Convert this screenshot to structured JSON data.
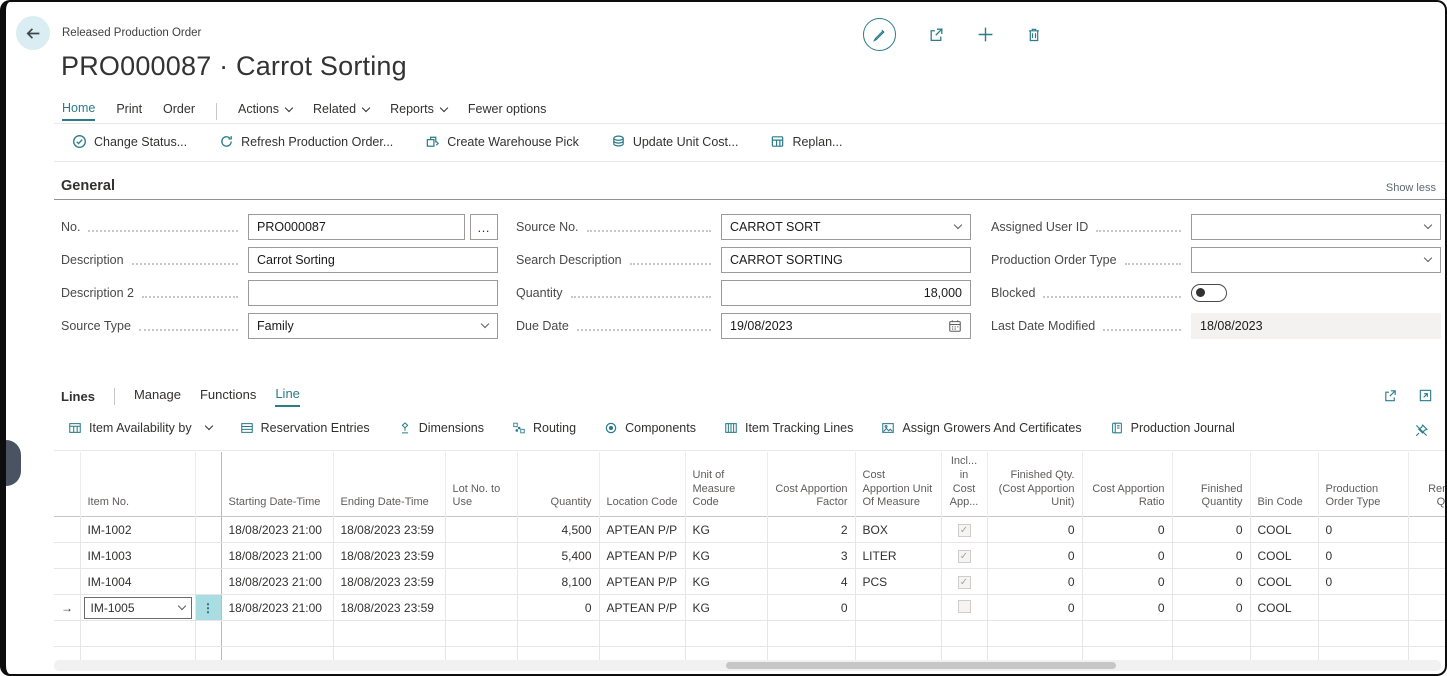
{
  "header": {
    "breadcrumb": "Released Production Order",
    "title": "PRO000087 · Carrot Sorting"
  },
  "menubar": {
    "tabs": [
      {
        "label": "Home",
        "active": true
      },
      {
        "label": "Print",
        "active": false
      },
      {
        "label": "Order",
        "active": false
      }
    ],
    "menus": [
      {
        "label": "Actions"
      },
      {
        "label": "Related"
      },
      {
        "label": "Reports"
      }
    ],
    "fewer_options": "Fewer options"
  },
  "command_bar": [
    {
      "label": "Change Status...",
      "icon": "change-status-icon"
    },
    {
      "label": "Refresh Production Order...",
      "icon": "refresh-icon"
    },
    {
      "label": "Create Warehouse Pick",
      "icon": "warehouse-pick-icon"
    },
    {
      "label": "Update Unit Cost...",
      "icon": "unit-cost-icon"
    },
    {
      "label": "Replan...",
      "icon": "replan-icon"
    }
  ],
  "general": {
    "heading": "General",
    "show_less": "Show less",
    "no": {
      "label": "No.",
      "value": "PRO000087"
    },
    "description": {
      "label": "Description",
      "value": "Carrot Sorting"
    },
    "description2": {
      "label": "Description 2",
      "value": ""
    },
    "source_type": {
      "label": "Source Type",
      "value": "Family"
    },
    "source_no": {
      "label": "Source No.",
      "value": "CARROT SORT"
    },
    "search_description": {
      "label": "Search Description",
      "value": "CARROT SORTING"
    },
    "quantity": {
      "label": "Quantity",
      "value": "18,000"
    },
    "due_date": {
      "label": "Due Date",
      "value": "19/08/2023"
    },
    "assigned_user_id": {
      "label": "Assigned User ID",
      "value": ""
    },
    "production_order_type": {
      "label": "Production Order Type",
      "value": ""
    },
    "blocked": {
      "label": "Blocked",
      "state": "off"
    },
    "last_date_modified": {
      "label": "Last Date Modified",
      "value": "18/08/2023"
    }
  },
  "lines": {
    "heading": "Lines",
    "tabs": [
      {
        "label": "Manage",
        "active": false
      },
      {
        "label": "Functions",
        "active": false
      },
      {
        "label": "Line",
        "active": true
      }
    ],
    "toolbar": [
      {
        "label": "Item Availability by",
        "icon": "item-availability-icon",
        "dropdown": true
      },
      {
        "label": "Reservation Entries",
        "icon": "reservation-entries-icon"
      },
      {
        "label": "Dimensions",
        "icon": "dimensions-icon"
      },
      {
        "label": "Routing",
        "icon": "routing-icon"
      },
      {
        "label": "Components",
        "icon": "components-icon"
      },
      {
        "label": "Item Tracking Lines",
        "icon": "item-tracking-icon"
      },
      {
        "label": "Assign Growers And Certificates",
        "icon": "assign-growers-icon"
      },
      {
        "label": "Production Journal",
        "icon": "production-journal-icon"
      }
    ],
    "table": {
      "columns": [
        {
          "key": "row-marker",
          "label": "",
          "align": "center",
          "type": "marker"
        },
        {
          "key": "item-no",
          "label": "Item No.",
          "align": "left",
          "type": "item"
        },
        {
          "key": "row-menu",
          "label": "",
          "align": "center",
          "type": "menu"
        },
        {
          "key": "starting-date-time",
          "label": "Starting Date-Time",
          "align": "left"
        },
        {
          "key": "ending-date-time",
          "label": "Ending Date-Time",
          "align": "left"
        },
        {
          "key": "lot-no-to-use",
          "label": "Lot No. to\nUse",
          "align": "left"
        },
        {
          "key": "quantity",
          "label": "Quantity",
          "align": "right"
        },
        {
          "key": "location-code",
          "label": "Location Code",
          "align": "left"
        },
        {
          "key": "unit-of-measure-code",
          "label": "Unit of\nMeasure Code",
          "align": "left"
        },
        {
          "key": "cost-apportion-factor",
          "label": "Cost Apportion\nFactor",
          "align": "right"
        },
        {
          "key": "cost-apportion-unit-of-measure",
          "label": "Cost\nApportion Unit\nOf Measure",
          "align": "left"
        },
        {
          "key": "incl-in-cost-app",
          "label": "Incl...\nin\nCost\nApp...",
          "align": "center",
          "type": "checkbox"
        },
        {
          "key": "finished-qty-cost-apportion-unit",
          "label": "Finished Qty.\n(Cost Apportion\nUnit)",
          "align": "right"
        },
        {
          "key": "cost-apportion-ratio",
          "label": "Cost Apportion\nRatio",
          "align": "right"
        },
        {
          "key": "finished-quantity",
          "label": "Finished\nQuantity",
          "align": "right"
        },
        {
          "key": "bin-code",
          "label": "Bin Code",
          "align": "left"
        },
        {
          "key": "production-order-type",
          "label": "Production\nOrder Type",
          "align": "left"
        },
        {
          "key": "remaining-quantity",
          "label": "Rem...\nQu...",
          "align": "right"
        }
      ],
      "rows": [
        {
          "selected": false,
          "cells": [
            "",
            "IM-1002",
            "",
            "18/08/2023 21:00",
            "18/08/2023 23:59",
            "",
            "4,500",
            "APTEAN P/P",
            "KG",
            "2",
            "BOX",
            true,
            "0",
            "0",
            "0",
            "COOL",
            "0",
            ""
          ]
        },
        {
          "selected": false,
          "cells": [
            "",
            "IM-1003",
            "",
            "18/08/2023 21:00",
            "18/08/2023 23:59",
            "",
            "5,400",
            "APTEAN P/P",
            "KG",
            "3",
            "LITER",
            true,
            "0",
            "0",
            "0",
            "COOL",
            "0",
            ""
          ]
        },
        {
          "selected": false,
          "cells": [
            "",
            "IM-1004",
            "",
            "18/08/2023 21:00",
            "18/08/2023 23:59",
            "",
            "8,100",
            "APTEAN P/P",
            "KG",
            "4",
            "PCS",
            true,
            "0",
            "0",
            "0",
            "COOL",
            "0",
            ""
          ]
        },
        {
          "selected": true,
          "cells": [
            "→",
            "IM-1005",
            "⋮",
            "18/08/2023 21:00",
            "18/08/2023 23:59",
            "",
            "0",
            "APTEAN P/P",
            "KG",
            "0",
            "",
            false,
            "0",
            "0",
            "0",
            "COOL",
            "",
            ""
          ]
        },
        {
          "selected": false,
          "cells": [
            "",
            "",
            "",
            "",
            "",
            "",
            "",
            "",
            "",
            "",
            "",
            null,
            "",
            "",
            "",
            "",
            "",
            ""
          ]
        },
        {
          "selected": false,
          "cells": [
            "",
            "",
            "",
            "",
            "",
            "",
            "",
            "",
            "",
            "",
            "",
            null,
            "",
            "",
            "",
            "",
            "",
            ""
          ]
        },
        {
          "selected": false,
          "cells": [
            "",
            "",
            "",
            "",
            "",
            "",
            "",
            "",
            "",
            "",
            "",
            null,
            "",
            "",
            "",
            "",
            "",
            ""
          ]
        }
      ]
    }
  },
  "icons": {
    "assist_edit": "…",
    "row_menu": "⋮",
    "selected_marker": "→",
    "checkbox_check": "✓"
  },
  "colors": {
    "accent_teal": "#2b7c8a",
    "selected_menu_bg": "#a9dde2",
    "readonly_bg": "#f3f2f1",
    "handle": "#4a5362"
  }
}
